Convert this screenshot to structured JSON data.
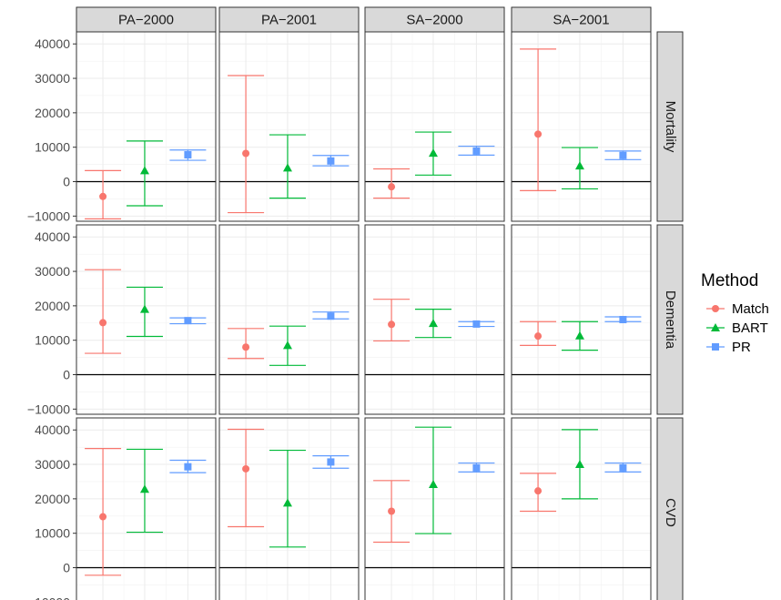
{
  "chart_data": {
    "type": "errorbar",
    "facets": {
      "columns": [
        "PA−2000",
        "PA−2001",
        "SA−2000",
        "SA−2001"
      ],
      "rows": [
        "Mortality",
        "Dementia",
        "CVD"
      ]
    },
    "ylim": [
      -11500,
      43500
    ],
    "y_ticks": [
      -10000,
      0,
      10000,
      20000,
      30000,
      40000
    ],
    "y_tick_labels": [
      "−10000",
      "0",
      "10000",
      "20000",
      "30000",
      "40000"
    ],
    "reference_line": 0,
    "grid": true,
    "legend": {
      "title": "Method",
      "position": "right",
      "items": [
        {
          "name": "Match",
          "color": "#F8766D",
          "shape": "circle"
        },
        {
          "name": "BART",
          "color": "#00BA38",
          "shape": "triangle"
        },
        {
          "name": "PR",
          "color": "#619CFF",
          "shape": "square"
        }
      ]
    },
    "methods": [
      "Match",
      "BART",
      "PR"
    ],
    "estimates": {
      "Mortality": {
        "PA−2000": [
          {
            "est": -4300,
            "lo": -10800,
            "hi": 3200
          },
          {
            "est": 3200,
            "lo": -7000,
            "hi": 11800
          },
          {
            "est": 7800,
            "lo": 6200,
            "hi": 9200
          }
        ],
        "PA−2001": [
          {
            "est": 8200,
            "lo": -9000,
            "hi": 30800
          },
          {
            "est": 4000,
            "lo": -4800,
            "hi": 13600
          },
          {
            "est": 6000,
            "lo": 4600,
            "hi": 7600
          }
        ],
        "SA−2000": [
          {
            "est": -1500,
            "lo": -4800,
            "hi": 3700
          },
          {
            "est": 8300,
            "lo": 1900,
            "hi": 14400
          },
          {
            "est": 8900,
            "lo": 7700,
            "hi": 10300
          }
        ],
        "SA−2001": [
          {
            "est": 13800,
            "lo": -2600,
            "hi": 38500
          },
          {
            "est": 4600,
            "lo": -2100,
            "hi": 9900
          },
          {
            "est": 7600,
            "lo": 6400,
            "hi": 8900
          }
        ]
      },
      "Dementia": {
        "PA−2000": [
          {
            "est": 15100,
            "lo": 6200,
            "hi": 30500
          },
          {
            "est": 19000,
            "lo": 11100,
            "hi": 25400
          },
          {
            "est": 15700,
            "lo": 14800,
            "hi": 16500
          }
        ],
        "PA−2001": [
          {
            "est": 8000,
            "lo": 4700,
            "hi": 13400
          },
          {
            "est": 8500,
            "lo": 2700,
            "hi": 14100
          },
          {
            "est": 17000,
            "lo": 16200,
            "hi": 18200
          }
        ],
        "SA−2000": [
          {
            "est": 14600,
            "lo": 9800,
            "hi": 21900
          },
          {
            "est": 14900,
            "lo": 10800,
            "hi": 19000
          },
          {
            "est": 14700,
            "lo": 14000,
            "hi": 15400
          }
        ],
        "SA−2001": [
          {
            "est": 11200,
            "lo": 8500,
            "hi": 15400
          },
          {
            "est": 11300,
            "lo": 7100,
            "hi": 15400
          },
          {
            "est": 16000,
            "lo": 15400,
            "hi": 16800
          }
        ]
      },
      "CVD": {
        "PA−2000": [
          {
            "est": 14800,
            "lo": -2200,
            "hi": 34600
          },
          {
            "est": 22800,
            "lo": 10300,
            "hi": 34400
          },
          {
            "est": 29300,
            "lo": 27600,
            "hi": 31200
          }
        ],
        "PA−2001": [
          {
            "est": 28700,
            "lo": 11900,
            "hi": 40200
          },
          {
            "est": 18800,
            "lo": 6000,
            "hi": 34100
          },
          {
            "est": 30700,
            "lo": 28900,
            "hi": 32500
          }
        ],
        "SA−2000": [
          {
            "est": 16400,
            "lo": 7400,
            "hi": 25300
          },
          {
            "est": 24200,
            "lo": 9900,
            "hi": 40800
          },
          {
            "est": 29000,
            "lo": 27800,
            "hi": 30400
          }
        ],
        "SA−2001": [
          {
            "est": 22300,
            "lo": 16400,
            "hi": 27400
          },
          {
            "est": 30000,
            "lo": 20000,
            "hi": 40100
          },
          {
            "est": 29000,
            "lo": 27800,
            "hi": 30400
          }
        ]
      }
    }
  }
}
